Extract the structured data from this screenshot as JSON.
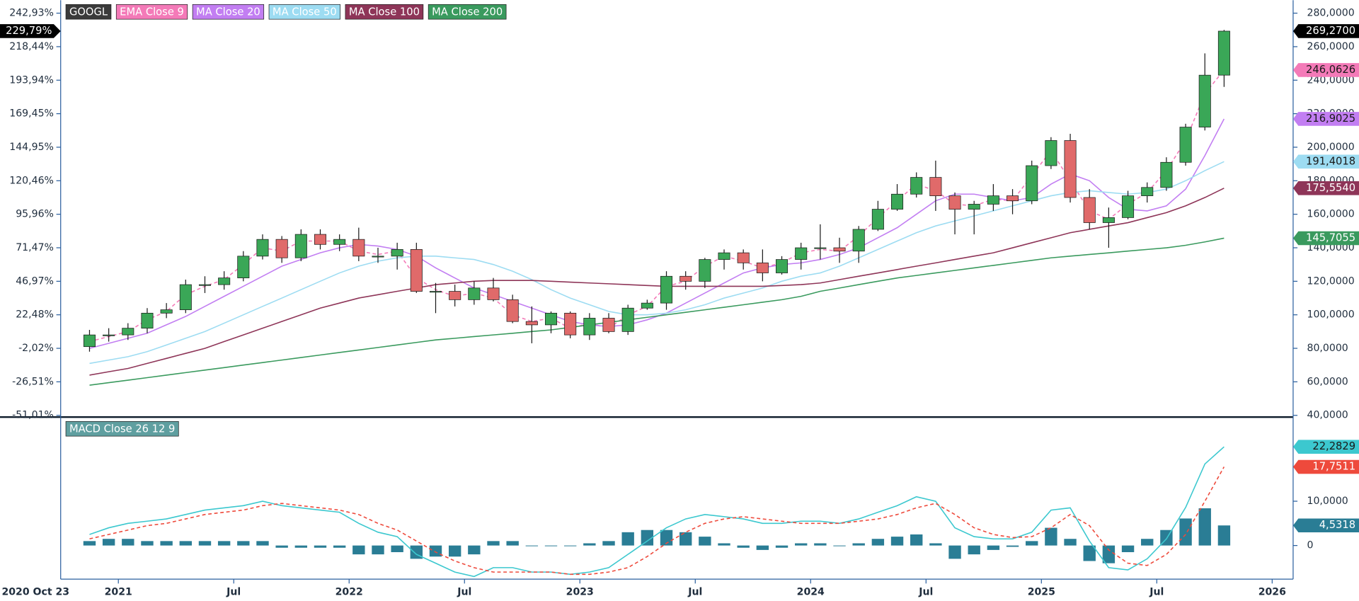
{
  "chart_data": [
    {
      "type": "candlestick",
      "x": [
        "2020-11",
        "2020-12",
        "2021-01",
        "2021-02",
        "2021-03",
        "2021-04",
        "2021-05",
        "2021-06",
        "2021-07",
        "2021-08",
        "2021-09",
        "2021-10",
        "2021-11",
        "2021-12",
        "2022-01",
        "2022-02",
        "2022-03",
        "2022-04",
        "2022-05",
        "2022-06",
        "2022-07",
        "2022-08",
        "2022-09",
        "2022-10",
        "2022-11",
        "2022-12",
        "2023-01",
        "2023-02",
        "2023-03",
        "2023-04",
        "2023-05",
        "2023-06",
        "2023-07",
        "2023-08",
        "2023-09",
        "2023-10",
        "2023-11",
        "2023-12",
        "2024-01",
        "2024-02",
        "2024-03",
        "2024-04",
        "2024-05",
        "2024-06",
        "2024-07",
        "2024-08",
        "2024-09",
        "2024-10",
        "2024-11",
        "2024-12",
        "2025-01",
        "2025-02",
        "2025-03",
        "2025-04",
        "2025-05",
        "2025-06",
        "2025-07",
        "2025-08",
        "2025-09",
        "2025-10"
      ],
      "candles": {
        "name": "GOOGL",
        "up_color": "#3aa757",
        "down_color": "#e06a6a",
        "last_label": "269,2700",
        "open": [
          81,
          88,
          88,
          92,
          101,
          103,
          118,
          118,
          122,
          135,
          145,
          134,
          148,
          142,
          145,
          135,
          135,
          139,
          114,
          114,
          109,
          116,
          109,
          96,
          94,
          101,
          88,
          98,
          90,
          104,
          107,
          123,
          120,
          133,
          137,
          131,
          125,
          133,
          140,
          140,
          138,
          151,
          163,
          172,
          182,
          171,
          163,
          166,
          171,
          168,
          189,
          204,
          170,
          155,
          158,
          171,
          176,
          191,
          212,
          243
        ],
        "high": [
          91,
          92,
          95,
          104,
          107,
          121,
          123,
          126,
          138,
          148,
          147,
          151,
          151,
          148,
          152,
          140,
          143,
          143,
          119,
          118,
          120,
          122,
          112,
          105,
          102,
          102,
          101,
          101,
          106,
          109,
          126,
          126,
          134,
          139,
          139,
          139,
          135,
          143,
          154,
          146,
          153,
          168,
          178,
          185,
          192,
          173,
          168,
          178,
          175,
          192,
          206,
          208,
          175,
          164,
          174,
          179,
          194,
          214,
          256,
          270
        ],
        "low": [
          78,
          84,
          85,
          89,
          98,
          101,
          113,
          115,
          120,
          133,
          131,
          132,
          139,
          138,
          132,
          131,
          127,
          113,
          101,
          105,
          106,
          108,
          95,
          83,
          89,
          86,
          85,
          89,
          88,
          103,
          103,
          115,
          116,
          127,
          127,
          120,
          124,
          127,
          133,
          131,
          131,
          150,
          162,
          170,
          162,
          148,
          148,
          162,
          160,
          166,
          187,
          167,
          151,
          140,
          157,
          167,
          174,
          189,
          210,
          236
        ],
        "close": [
          88,
          88,
          92,
          101,
          103,
          118,
          118,
          122,
          135,
          145,
          134,
          148,
          142,
          145,
          135,
          135,
          139,
          114,
          114,
          109,
          116,
          109,
          96,
          94,
          101,
          88,
          98,
          90,
          104,
          107,
          123,
          120,
          133,
          137,
          131,
          125,
          133,
          140,
          140,
          138,
          151,
          163,
          172,
          182,
          171,
          163,
          166,
          171,
          168,
          189,
          204,
          170,
          155,
          158,
          171,
          176,
          191,
          212,
          243,
          269.27
        ]
      },
      "series": [
        {
          "name": "EMA Close 9",
          "color": "#f47ab8",
          "dash": true,
          "last_label": "246,0626",
          "values": [
            84,
            87,
            90,
            97,
            102,
            112,
            117,
            121,
            130,
            140,
            138,
            144,
            144,
            144,
            138,
            136,
            138,
            122,
            115,
            111,
            113,
            110,
            100,
            96,
            98,
            92,
            95,
            92,
            100,
            105,
            117,
            120,
            129,
            135,
            132,
            128,
            131,
            137,
            139,
            138,
            147,
            158,
            168,
            178,
            174,
            166,
            165,
            169,
            168,
            183,
            198,
            180,
            162,
            157,
            166,
            173,
            186,
            204,
            232,
            246.0626
          ]
        },
        {
          "name": "MA Close 20",
          "color": "#c27ef2",
          "dash": false,
          "last_label": "216,9025",
          "values": [
            80,
            83,
            86,
            89,
            94,
            99,
            105,
            111,
            117,
            123,
            129,
            133,
            137,
            140,
            142,
            141,
            139,
            135,
            128,
            122,
            116,
            112,
            108,
            104,
            100,
            96,
            94,
            93,
            94,
            97,
            101,
            107,
            113,
            119,
            125,
            128,
            130,
            131,
            133,
            136,
            140,
            146,
            152,
            160,
            168,
            172,
            172,
            170,
            168,
            170,
            178,
            184,
            180,
            170,
            163,
            162,
            165,
            175,
            195,
            216.9025
          ]
        },
        {
          "name": "MA Close 50",
          "color": "#9ddcf2",
          "dash": false,
          "last_label": "191,4018",
          "values": [
            71,
            73,
            75,
            78,
            82,
            86,
            90,
            95,
            100,
            105,
            110,
            115,
            120,
            125,
            129,
            132,
            134,
            135,
            135,
            134,
            133,
            130,
            126,
            121,
            115,
            110,
            106,
            102,
            100,
            100,
            101,
            103,
            106,
            110,
            113,
            116,
            120,
            123,
            125,
            129,
            134,
            139,
            144,
            149,
            153,
            156,
            159,
            162,
            165,
            168,
            171,
            173,
            174,
            173,
            172,
            173,
            175,
            180,
            186,
            191.4018
          ]
        },
        {
          "name": "MA Close 100",
          "color": "#8e3558",
          "dash": false,
          "last_label": "175,5540",
          "values": [
            64,
            66,
            68,
            71,
            74,
            77,
            80,
            84,
            88,
            92,
            96,
            100,
            104,
            107,
            110,
            112,
            114,
            116,
            118,
            119,
            120,
            120.5,
            120.5,
            120.5,
            120,
            119.5,
            119,
            118.5,
            118,
            117.5,
            117,
            117,
            117,
            117,
            117,
            117,
            117.5,
            118,
            119,
            121,
            123,
            125,
            127,
            129,
            131,
            133,
            135,
            137,
            140,
            143,
            146,
            149,
            151,
            153,
            155,
            158,
            161,
            165,
            170,
            175.554
          ]
        },
        {
          "name": "MA Close 200",
          "color": "#3a9a5e",
          "dash": false,
          "last_label": "145,7055",
          "values": [
            58,
            59.5,
            61,
            62.5,
            64,
            65.5,
            67,
            68.5,
            70,
            71.5,
            73,
            74.5,
            76,
            77.5,
            79,
            80.5,
            82,
            83.5,
            85,
            86,
            87,
            88,
            89,
            90,
            91,
            92.5,
            94,
            95.5,
            97,
            98.5,
            100,
            101.5,
            103,
            104.5,
            106,
            107.5,
            109,
            111,
            114,
            116,
            118,
            120,
            122,
            123.5,
            125,
            126.5,
            128,
            129.5,
            131,
            132.5,
            134,
            135,
            136,
            137,
            138,
            139,
            140,
            141.5,
            143.5,
            145.7055
          ]
        }
      ],
      "ylim": [
        40,
        280
      ],
      "yticks": [
        {
          "value": 40,
          "label": "40,0000"
        },
        {
          "value": 60,
          "label": "60,0000"
        },
        {
          "value": 80,
          "label": "80,0000"
        },
        {
          "value": 100,
          "label": "100,0000"
        },
        {
          "value": 120,
          "label": "120,0000"
        },
        {
          "value": 140,
          "label": "140,0000"
        },
        {
          "value": 160,
          "label": "160,0000"
        },
        {
          "value": 180,
          "label": "180,0000"
        },
        {
          "value": 200,
          "label": "200,0000"
        },
        {
          "value": 220,
          "label": "220,0000"
        },
        {
          "value": 240,
          "label": "240,0000"
        },
        {
          "value": 260,
          "label": "260,0000"
        },
        {
          "value": 280,
          "label": "280,0000"
        }
      ],
      "pct_axis": {
        "lim": [
          -51.01,
          242.93
        ],
        "ticks": [
          {
            "value": 242.93,
            "label": "242,93%"
          },
          {
            "value": 218.44,
            "label": "218,44%"
          },
          {
            "value": 193.94,
            "label": "193,94%"
          },
          {
            "value": 169.45,
            "label": "169,45%"
          },
          {
            "value": 144.95,
            "label": "144,95%"
          },
          {
            "value": 120.46,
            "label": "120,46%"
          },
          {
            "value": 95.96,
            "label": "95,96%"
          },
          {
            "value": 71.47,
            "label": "71,47%"
          },
          {
            "value": 46.97,
            "label": "46,97%"
          },
          {
            "value": 22.48,
            "label": "22,48%"
          },
          {
            "value": -2.02,
            "label": "-2,02%"
          },
          {
            "value": -26.51,
            "label": "-26,51%"
          },
          {
            "value": -51.01,
            "label": "-51,01%"
          }
        ],
        "last": {
          "value": 229.79,
          "label": "229,79%"
        }
      },
      "xlim": [
        "2020-10",
        "2026-02"
      ],
      "xticks": [
        {
          "value": "2021-01",
          "label": "2021"
        },
        {
          "value": "2021-07",
          "label": "Jul"
        },
        {
          "value": "2022-01",
          "label": "2022"
        },
        {
          "value": "2022-07",
          "label": "Jul"
        },
        {
          "value": "2023-01",
          "label": "2023"
        },
        {
          "value": "2023-07",
          "label": "Jul"
        },
        {
          "value": "2024-01",
          "label": "2024"
        },
        {
          "value": "2024-07",
          "label": "Jul"
        },
        {
          "value": "2025-01",
          "label": "2025"
        },
        {
          "value": "2025-07",
          "label": "Jul"
        },
        {
          "value": "2026-01",
          "label": "2026"
        }
      ],
      "x_start_label": "2020 Oct 23",
      "grid": false
    },
    {
      "type": "macd",
      "title": "MACD Close 26 12 9",
      "x": [
        "2020-11",
        "2020-12",
        "2021-01",
        "2021-02",
        "2021-03",
        "2021-04",
        "2021-05",
        "2021-06",
        "2021-07",
        "2021-08",
        "2021-09",
        "2021-10",
        "2021-11",
        "2021-12",
        "2022-01",
        "2022-02",
        "2022-03",
        "2022-04",
        "2022-05",
        "2022-06",
        "2022-07",
        "2022-08",
        "2022-09",
        "2022-10",
        "2022-11",
        "2022-12",
        "2023-01",
        "2023-02",
        "2023-03",
        "2023-04",
        "2023-05",
        "2023-06",
        "2023-07",
        "2023-08",
        "2023-09",
        "2023-10",
        "2023-11",
        "2023-12",
        "2024-01",
        "2024-02",
        "2024-03",
        "2024-04",
        "2024-05",
        "2024-06",
        "2024-07",
        "2024-08",
        "2024-09",
        "2024-10",
        "2024-11",
        "2024-12",
        "2025-01",
        "2025-02",
        "2025-03",
        "2025-04",
        "2025-05",
        "2025-06",
        "2025-07",
        "2025-08",
        "2025-09",
        "2025-10"
      ],
      "series": [
        {
          "type": "line",
          "color": "#3cc8cf",
          "dash": false,
          "last_label": "22,2829",
          "values": [
            2.5,
            4,
            5,
            5.5,
            6,
            7,
            8,
            8.5,
            9,
            10,
            9,
            8.5,
            8,
            7.5,
            5,
            3,
            2,
            -2,
            -4,
            -6,
            -7,
            -5,
            -5,
            -6,
            -6,
            -6.5,
            -6,
            -5,
            -2,
            1,
            4,
            6,
            7,
            6.5,
            6,
            5,
            5,
            5.5,
            5.5,
            5,
            6,
            7.5,
            9,
            11,
            10,
            4,
            2,
            1.5,
            1.5,
            3,
            8,
            8.5,
            1,
            -5,
            -5.5,
            -3,
            1.5,
            8.6,
            18.4,
            22.2829
          ]
        },
        {
          "type": "line",
          "color": "#ee4a3c",
          "dash": true,
          "last_label": "17,7511",
          "values": [
            1.5,
            2.5,
            3.5,
            4.5,
            5,
            6,
            7,
            7.5,
            8,
            9,
            9.5,
            9,
            8.5,
            8,
            7,
            5,
            3.5,
            1,
            -1.5,
            -3.5,
            -5,
            -6,
            -6,
            -6,
            -6,
            -6.5,
            -6.5,
            -6,
            -5,
            -2.5,
            0.5,
            3,
            5,
            6,
            6.5,
            6,
            5.5,
            5,
            5,
            5,
            5.5,
            6,
            7,
            8.5,
            9.5,
            7,
            4,
            2.5,
            1.8,
            2,
            4,
            7,
            4.5,
            -1,
            -4,
            -4.5,
            -2,
            2.5,
            10,
            17.7511
          ]
        },
        {
          "type": "bar",
          "color": "#2a7d95",
          "last_label": "4,5318",
          "values": [
            1,
            1.5,
            1.5,
            1,
            1,
            1,
            1,
            1,
            1,
            1,
            -0.5,
            -0.5,
            -0.5,
            -0.5,
            -2,
            -2,
            -1.5,
            -3,
            -2.5,
            -2.5,
            -2,
            1,
            1,
            0,
            0,
            0,
            0.5,
            1,
            3,
            3.5,
            3.5,
            3,
            2,
            0.5,
            -0.5,
            -1,
            -0.5,
            0.5,
            0.5,
            0,
            0.5,
            1.5,
            2,
            2.5,
            0.5,
            -3,
            -2,
            -1,
            -0.3,
            1,
            4,
            1.5,
            -3.5,
            -4,
            -1.5,
            1.5,
            3.5,
            6.1,
            8.4,
            4.5318
          ]
        }
      ],
      "ylim": [
        -7.6,
        28.6
      ],
      "yticks": [
        {
          "value": 10,
          "label": "10,0000"
        },
        0
      ],
      "grid": false
    }
  ]
}
